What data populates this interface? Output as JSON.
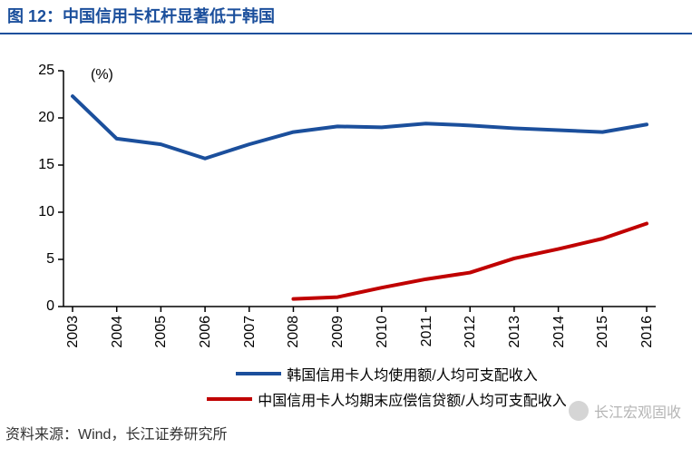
{
  "title": "图 12：中国信用卡杠杆显著低于韩国",
  "title_color": "#1b4f9c",
  "title_fontsize": 18,
  "title_border_color": "#1b4f9c",
  "chart": {
    "type": "line",
    "unit_label": "(%)",
    "unit_fontsize": 16,
    "background_color": "#ffffff",
    "xlim": [
      2003,
      2016
    ],
    "ylim": [
      0,
      25
    ],
    "ytick_step": 5,
    "yticks": [
      0,
      5,
      10,
      15,
      20,
      25
    ],
    "xticks": [
      2003,
      2004,
      2005,
      2006,
      2007,
      2008,
      2009,
      2010,
      2011,
      2012,
      2013,
      2014,
      2015,
      2016
    ],
    "axis_color": "#000000",
    "tick_len": 6,
    "tick_fontsize": 16,
    "series": [
      {
        "name": "韩国信用卡人均使用额/人均可支配收入",
        "color": "#1b4f9c",
        "line_width": 4,
        "x": [
          2003,
          2004,
          2005,
          2006,
          2007,
          2008,
          2009,
          2010,
          2011,
          2012,
          2013,
          2014,
          2015,
          2016
        ],
        "y": [
          22.3,
          17.8,
          17.2,
          15.7,
          17.2,
          18.5,
          19.1,
          19.0,
          19.4,
          19.2,
          18.9,
          18.7,
          18.5,
          19.3
        ]
      },
      {
        "name": "中国信用卡人均期末应偿信贷额/人均可支配收入",
        "color": "#c00000",
        "line_width": 4,
        "x": [
          2008,
          2009,
          2010,
          2011,
          2012,
          2013,
          2014,
          2015,
          2016
        ],
        "y": [
          0.8,
          1.0,
          2.0,
          2.9,
          3.6,
          5.1,
          6.1,
          7.2,
          8.8
        ]
      }
    ],
    "legend": {
      "fontsize": 16,
      "swatch_width": 50,
      "swatch_height": 4
    }
  },
  "source": "资料来源：Wind，长江证券研究所",
  "watermark": "长江宏观固收"
}
